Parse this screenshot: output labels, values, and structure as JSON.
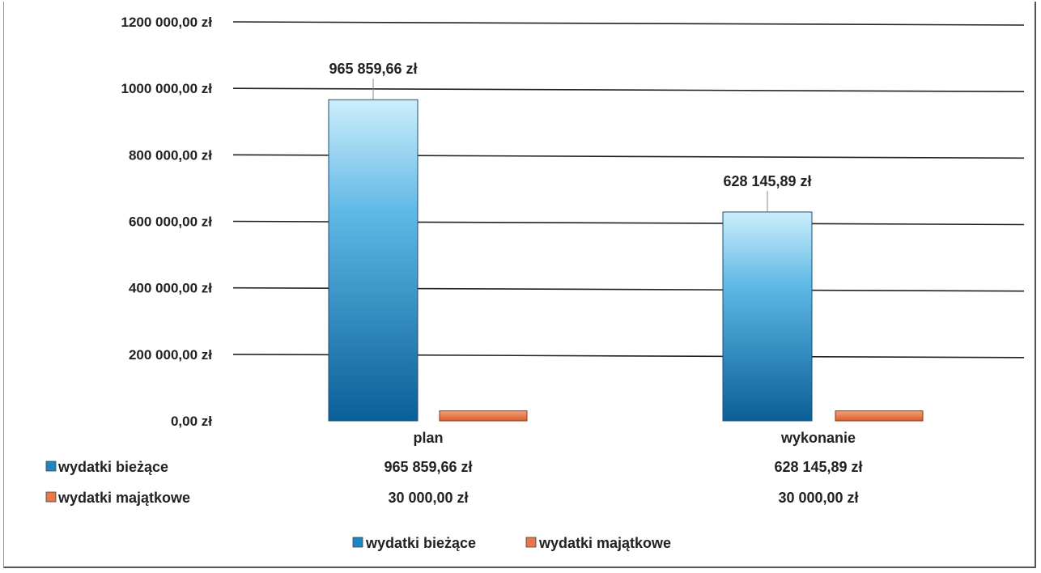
{
  "chart_data": {
    "type": "bar",
    "categories": [
      "plan",
      "wykonanie"
    ],
    "series": [
      {
        "name": "wydatki bieżące",
        "values": [
          965859.66,
          628145.89
        ],
        "labels": [
          "965 859,66 zł",
          "628 145,89 zł"
        ],
        "color": "#1e86c4"
      },
      {
        "name": "wydatki majątkowe",
        "values": [
          30000.0,
          30000.0
        ],
        "labels": [
          "30 000,00 zł",
          "30 000,00 zł"
        ],
        "color": "#e8784a"
      }
    ],
    "data_labels": [
      "965 859,66 zł",
      "628 145,89 zł"
    ],
    "y_ticks": [
      "0,00 zł",
      "200 000,00 zł",
      "400 000,00 zł",
      "600 000,00 zł",
      "800 000,00 zł",
      "1000 000,00 zł",
      "1200 000,00 zł"
    ],
    "ylim": [
      0,
      1200000
    ],
    "grid": true,
    "legend_position": "bottom",
    "data_table": true
  }
}
